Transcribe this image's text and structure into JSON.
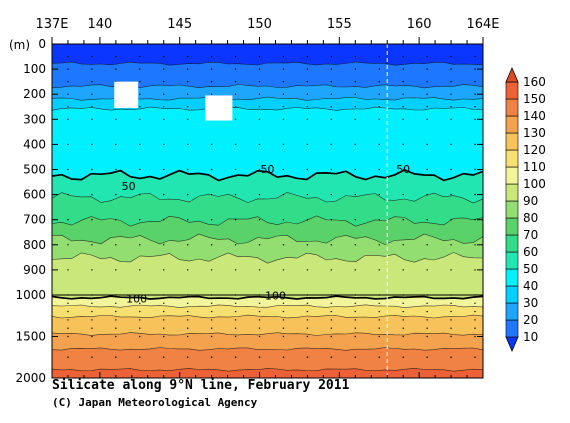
{
  "chart_data": {
    "type": "contour",
    "title": "Silicate along 9°N line, February 2011",
    "credit": "(C) Japan Meteorological Agency",
    "xlabel": "",
    "ylabel": "",
    "x_axis": {
      "range": [
        137,
        164
      ],
      "ticks": [
        {
          "v": 137,
          "label": "137E"
        },
        {
          "v": 140,
          "label": "140"
        },
        {
          "v": 145,
          "label": "145"
        },
        {
          "v": 150,
          "label": "150"
        },
        {
          "v": 155,
          "label": "155"
        },
        {
          "v": 160,
          "label": "160"
        },
        {
          "v": 164,
          "label": "164E"
        }
      ]
    },
    "y_axis": {
      "unit_label": "(m)",
      "upper_range": [
        0,
        1000
      ],
      "lower_range": [
        1000,
        2000
      ],
      "ticks": [
        {
          "v": 0,
          "label": "0"
        },
        {
          "v": 100,
          "label": "100"
        },
        {
          "v": 200,
          "label": "200"
        },
        {
          "v": 300,
          "label": "300"
        },
        {
          "v": 400,
          "label": "400"
        },
        {
          "v": 500,
          "label": "500"
        },
        {
          "v": 600,
          "label": "600"
        },
        {
          "v": 700,
          "label": "700"
        },
        {
          "v": 800,
          "label": "800"
        },
        {
          "v": 900,
          "label": "900"
        },
        {
          "v": 1000,
          "label": "1000"
        },
        {
          "v": 1500,
          "label": "1500"
        },
        {
          "v": 2000,
          "label": "2000"
        }
      ]
    },
    "section_break_lon": 158,
    "levels": [
      10,
      20,
      30,
      40,
      50,
      60,
      70,
      80,
      90,
      100,
      110,
      120,
      130,
      140,
      150,
      160
    ],
    "colorbar": {
      "colors": [
        "#0a36ff",
        "#1e78ff",
        "#1ea6ff",
        "#00d0ff",
        "#00f0ff",
        "#22e6b2",
        "#33dc88",
        "#5ad26a",
        "#92de70",
        "#cae87a",
        "#f2f59a",
        "#f8e070",
        "#f7c25a",
        "#f4a24e",
        "#f08244",
        "#ec6236",
        "#e04a26"
      ],
      "labels": [
        "10",
        "20",
        "30",
        "40",
        "50",
        "60",
        "70",
        "80",
        "90",
        "100",
        "110",
        "120",
        "130",
        "140",
        "150",
        "160"
      ]
    },
    "contour_depths_m": {
      "10": 78,
      "20": 168,
      "30": 218,
      "40": 258,
      "50": 523,
      "60": 612,
      "70": 705,
      "80": 778,
      "90": 852,
      "100": 1032,
      "110": 1135,
      "120": 1260,
      "130": 1470,
      "140": 1650,
      "150": 1900
    },
    "contour_labels": [
      {
        "level": 50,
        "lon": 141.8,
        "depth": 565,
        "text": "50"
      },
      {
        "level": 50,
        "lon": 150.5,
        "depth": 498,
        "text": "50"
      },
      {
        "level": 50,
        "lon": 159.0,
        "depth": 498,
        "text": "50"
      },
      {
        "level": 100,
        "lon": 142.3,
        "depth": 1040,
        "text": "100"
      },
      {
        "level": 100,
        "lon": 151.0,
        "depth": 1005,
        "text": "100"
      }
    ],
    "missing_boxes": [
      {
        "lon0": 140.9,
        "lon1": 142.4,
        "d0": 150,
        "d1": 255
      },
      {
        "lon0": 146.6,
        "lon1": 148.3,
        "d0": 205,
        "d1": 305
      }
    ],
    "sample_lons": [
      138,
      139.5,
      141,
      142.5,
      144,
      145.5,
      147,
      148.5,
      150,
      151.5,
      153,
      154.5,
      156,
      157.5,
      159,
      160.5,
      162,
      163.5
    ],
    "sample_depths": [
      50,
      100,
      150,
      200,
      250,
      300,
      400,
      500,
      600,
      700,
      800,
      900,
      1000,
      1100,
      1200,
      1300,
      1400,
      1500,
      1750,
      2000
    ]
  }
}
